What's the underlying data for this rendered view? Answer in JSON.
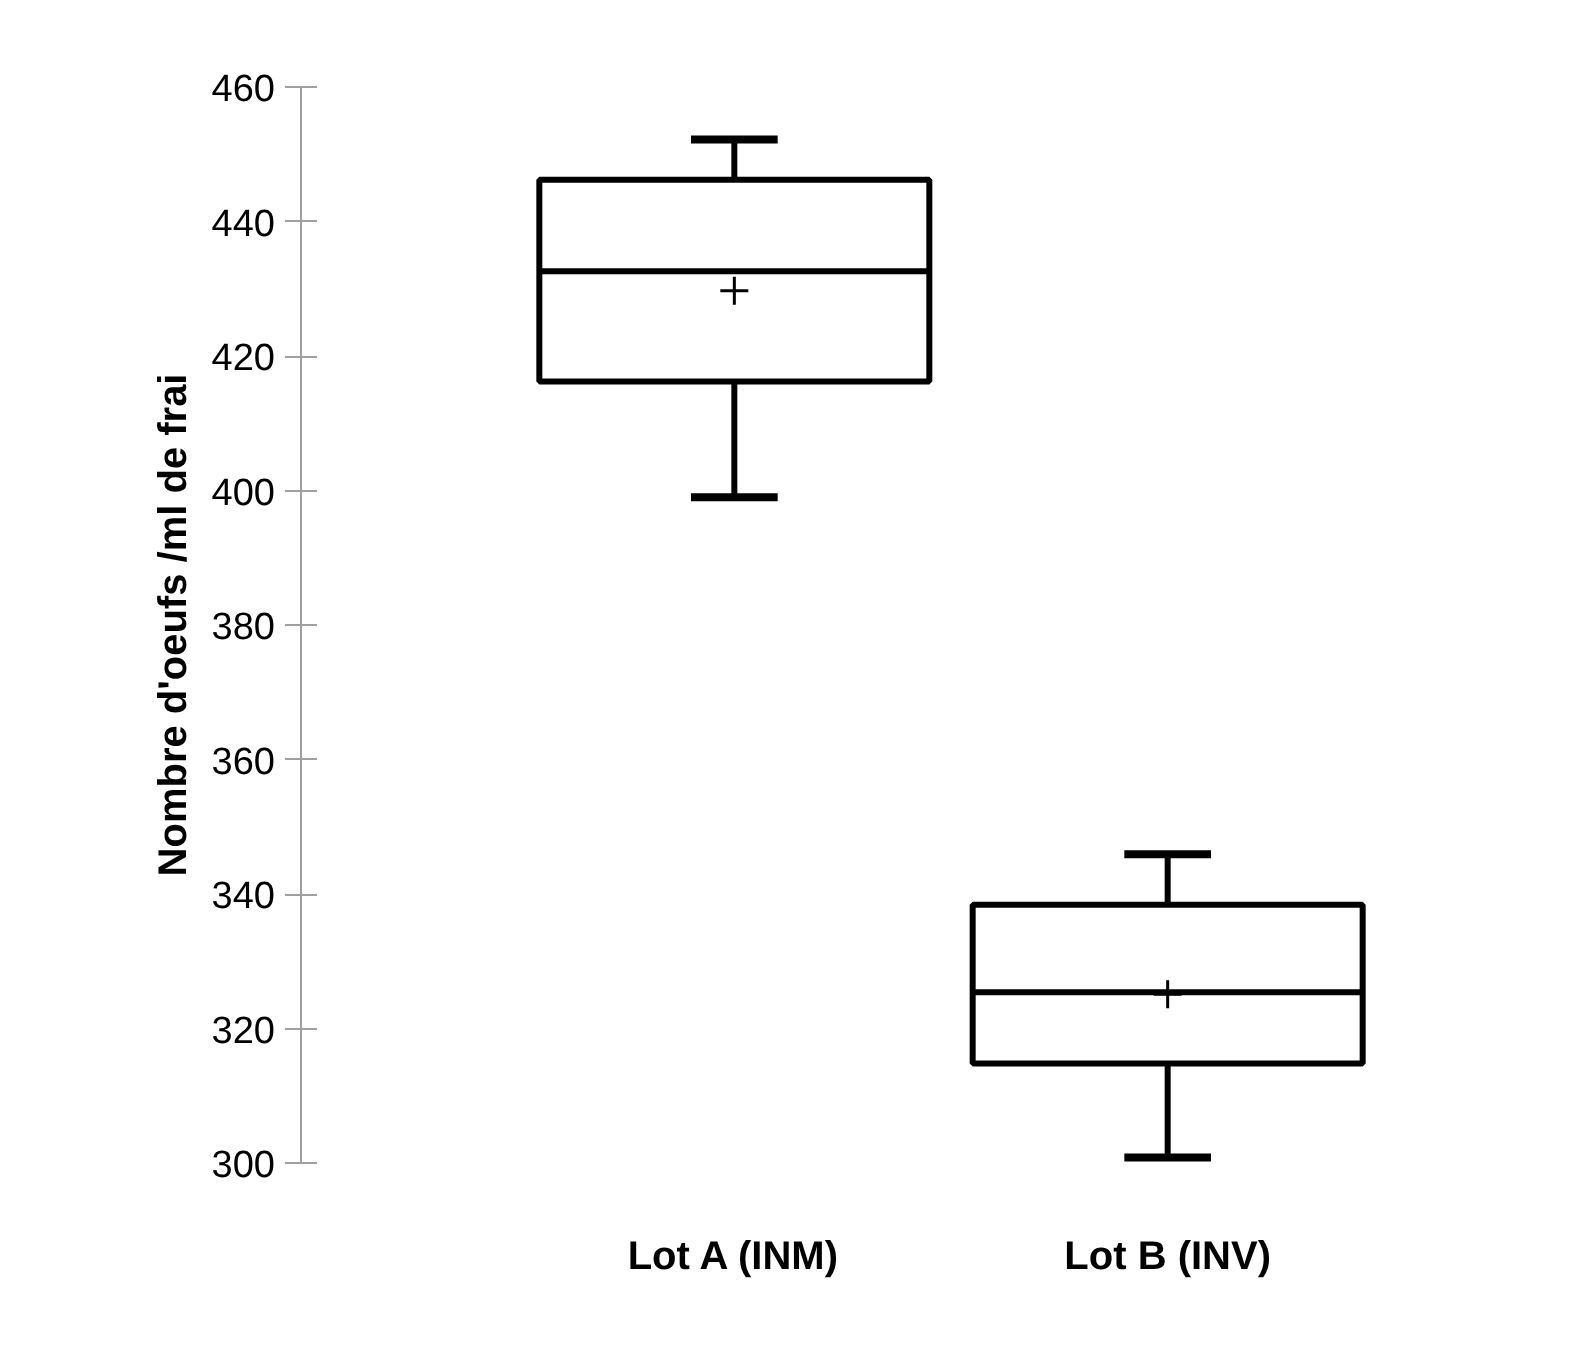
{
  "chart_data": {
    "type": "box",
    "ylabel": "Nombre d'oeufs /ml de frai",
    "categories": [
      "Lot A (INM)",
      "Lot B (INV)"
    ],
    "boxes": [
      {
        "low": 399,
        "q1": 416.2,
        "median": 432.6,
        "q3": 446.2,
        "high": 452.2,
        "mean": 429.7
      },
      {
        "low": 300.8,
        "q1": 314.8,
        "median": 325.4,
        "q3": 338.4,
        "high": 345.9,
        "mean": 325.1
      }
    ],
    "ylim": [
      300,
      460
    ],
    "yticks": [
      300,
      320,
      340,
      360,
      380,
      400,
      420,
      440,
      460
    ],
    "grid": false
  }
}
